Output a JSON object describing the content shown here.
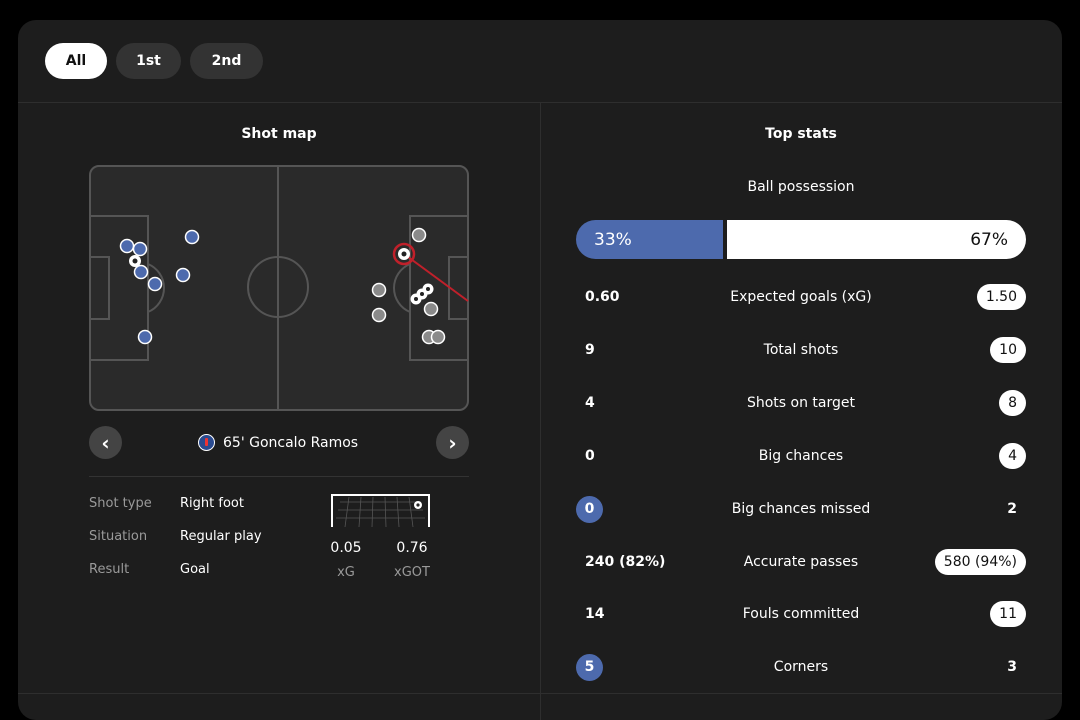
{
  "tabs": [
    {
      "label": "All",
      "active": true
    },
    {
      "label": "1st",
      "active": false
    },
    {
      "label": "2nd",
      "active": false
    }
  ],
  "shot_map": {
    "title": "Shot map",
    "selected_shot": {
      "minute_player": "65' Goncalo Ramos",
      "details": [
        {
          "label": "Shot type",
          "value": "Right foot"
        },
        {
          "label": "Situation",
          "value": "Regular play"
        },
        {
          "label": "Result",
          "value": "Goal"
        }
      ],
      "xg": {
        "value": "0.05",
        "label": "xG"
      },
      "xgot": {
        "value": "0.76",
        "label": "xGOT"
      }
    },
    "prev_icon": "chevron-left-icon",
    "next_icon": "chevron-right-icon",
    "colors": {
      "home": "#4d6aad",
      "away": "#8a8a8a",
      "highlight": "#c0202a"
    }
  },
  "top_stats": {
    "title": "Top stats",
    "possession": {
      "label": "Ball possession",
      "home": "33%",
      "away": "67%",
      "home_fraction": 0.33
    },
    "rows": [
      {
        "name": "Expected goals (xG)",
        "home": "0.60",
        "away": "1.50",
        "highlight": "away"
      },
      {
        "name": "Total shots",
        "home": "9",
        "away": "10",
        "highlight": "away"
      },
      {
        "name": "Shots on target",
        "home": "4",
        "away": "8",
        "highlight": "away"
      },
      {
        "name": "Big chances",
        "home": "0",
        "away": "4",
        "highlight": "away"
      },
      {
        "name": "Big chances missed",
        "home": "0",
        "away": "2",
        "highlight": "home"
      },
      {
        "name": "Accurate passes",
        "home": "240 (82%)",
        "away": "580 (94%)",
        "highlight": "away"
      },
      {
        "name": "Fouls committed",
        "home": "14",
        "away": "11",
        "highlight": "away"
      },
      {
        "name": "Corners",
        "home": "5",
        "away": "3",
        "highlight": "home"
      }
    ]
  }
}
